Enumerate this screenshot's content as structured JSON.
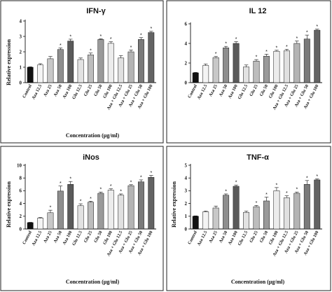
{
  "colors": [
    "#111111",
    "#f4f4f4",
    "#c8c8c8",
    "#8e8e8e",
    "#5a5a5a",
    "#e2e2e2",
    "#bdbdbd",
    "#9a9a9a",
    "#ececec",
    "#e0e0e0",
    "#b4b4b4",
    "#7a7a7a",
    "#636363"
  ],
  "chart_data": [
    {
      "type": "bar",
      "title": "IFN-γ",
      "xlabel": "Concentration (µg/ml)",
      "ylabel": "Relative expression",
      "ylim": [
        0,
        4
      ],
      "yticks": [
        "0",
        "1",
        "2",
        "3",
        "4"
      ],
      "categories": [
        "Control",
        "Aza 12.5",
        "Aza 25",
        "Aza 50",
        "Aza 100",
        "Glu 12.5",
        "Glu 25",
        "Glu 50",
        "Glu 100",
        "Aza + Glu 12.5",
        "Aza + Glu 25",
        "Aza + Glu 50",
        "Aza + Glu 100"
      ],
      "values": [
        1.0,
        1.15,
        1.55,
        2.15,
        2.7,
        1.5,
        1.8,
        2.8,
        2.55,
        1.6,
        2.0,
        2.8,
        3.25
      ],
      "errors": [
        0.03,
        0.08,
        0.15,
        0.1,
        0.12,
        0.1,
        0.12,
        0.05,
        0.1,
        0.15,
        0.12,
        0.12,
        0.08
      ],
      "significant": [
        "",
        "",
        "",
        "*",
        "*",
        "",
        "*",
        "*",
        "*",
        "",
        "*",
        "*",
        "*"
      ],
      "grid": false
    },
    {
      "type": "bar",
      "title": "IL 12",
      "xlabel": "",
      "ylabel": "",
      "ylim": [
        0,
        6
      ],
      "yticks": [
        "0",
        "2",
        "4",
        "6"
      ],
      "categories": [
        "Control",
        "Aza 12.5",
        "Aza 25",
        "Aza 50",
        "Aza 100",
        "Glu 12.5",
        "Glu 25",
        "Glu 50",
        "Glu 100",
        "Aza + Glu 12.5",
        "Aza + Glu 25",
        "Aza + Glu 50",
        "Aza + Glu 100"
      ],
      "values": [
        1.0,
        1.75,
        2.55,
        3.55,
        4.0,
        1.6,
        2.2,
        2.7,
        3.2,
        3.25,
        4.0,
        4.45,
        5.35
      ],
      "errors": [
        0.05,
        0.15,
        0.12,
        0.15,
        0.18,
        0.2,
        0.15,
        0.2,
        0.1,
        0.15,
        0.25,
        0.4,
        0.1
      ],
      "significant": [
        "",
        "",
        "*",
        "*",
        "*",
        "",
        "*",
        "*",
        "*",
        "*",
        "*",
        "*",
        "*"
      ],
      "grid": false
    },
    {
      "type": "bar",
      "title": "iNos",
      "xlabel": "Concentration (µg/ml)",
      "ylabel": "Relative expression",
      "ylim": [
        0,
        10
      ],
      "yticks": [
        "0",
        "2",
        "4",
        "6",
        "8",
        "10"
      ],
      "categories": [
        "Control",
        "Aza 12.5",
        "Aza 25",
        "Aza 50",
        "Aza 100",
        "Glu 12.5",
        "Glu 25",
        "Glu 50",
        "Glu 100",
        "Aza + Glu 12.5",
        "Aza + Glu 25",
        "Aza + Glu 50",
        "Aza + Glu 100"
      ],
      "values": [
        1.0,
        1.7,
        2.55,
        5.95,
        7.0,
        3.65,
        4.2,
        5.6,
        6.1,
        5.3,
        6.8,
        7.4,
        8.1
      ],
      "errors": [
        0.05,
        0.1,
        0.4,
        0.8,
        0.45,
        0.3,
        0.15,
        0.2,
        0.2,
        0.2,
        0.15,
        0.3,
        0.3
      ],
      "significant": [
        "",
        "",
        "*",
        "*",
        "*",
        "*",
        "*",
        "*",
        "*",
        "*",
        "*",
        "*",
        "*"
      ],
      "grid": false
    },
    {
      "type": "bar",
      "title": "TNF-α",
      "xlabel": "Concentration (µg/ml)",
      "ylabel": "Relative expression",
      "ylim": [
        0,
        5
      ],
      "yticks": [
        "0",
        "1",
        "2",
        "3",
        "4",
        "5"
      ],
      "categories": [
        "Control",
        "Aza 12.5",
        "Aza 25",
        "Aza 50",
        "Aza 100",
        "Glu 12.5",
        "Glu 25",
        "Glu 50",
        "Glu 100",
        "Aza + Glu 12.5",
        "Aza + Glu 25",
        "Aza + Glu 50",
        "Aza + Glu 100"
      ],
      "values": [
        1.0,
        1.35,
        1.65,
        2.65,
        3.35,
        1.3,
        1.75,
        2.2,
        3.0,
        2.45,
        2.8,
        3.5,
        3.85
      ],
      "errors": [
        0.03,
        0.06,
        0.15,
        0.1,
        0.1,
        0.1,
        0.1,
        0.3,
        0.25,
        0.15,
        0.1,
        0.3,
        0.08
      ],
      "significant": [
        "",
        "",
        "",
        "*",
        "*",
        "",
        "*",
        "*",
        "*",
        "*",
        "*",
        "*",
        "*"
      ],
      "grid": false
    }
  ]
}
